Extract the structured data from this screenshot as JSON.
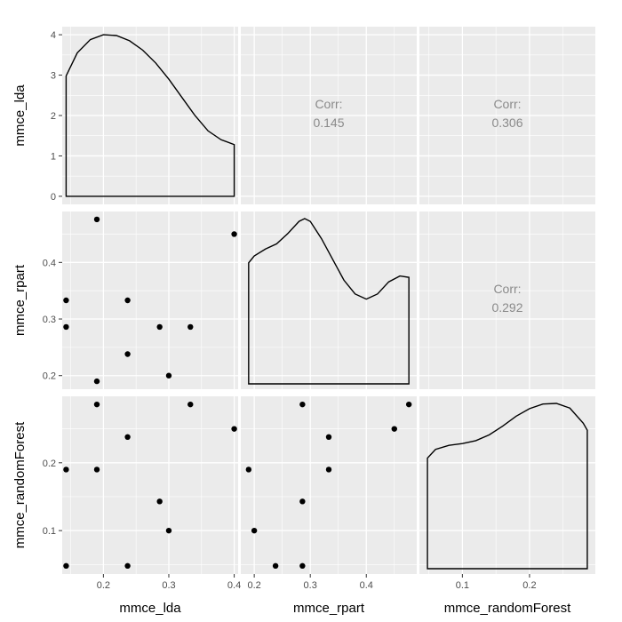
{
  "chart_data": {
    "type": "pairs",
    "variables": [
      "mmce_lda",
      "mmce_rpart",
      "mmce_randomForest"
    ],
    "points": {
      "mmce_lda": [
        0.19,
        0.4,
        0.143,
        0.237,
        0.143,
        0.286,
        0.333,
        0.237,
        0.3,
        0.19
      ],
      "mmce_rpart": [
        0.476,
        0.45,
        0.333,
        0.333,
        0.286,
        0.286,
        0.286,
        0.238,
        0.2,
        0.19
      ],
      "mmce_randomForest": [
        0.286,
        0.25,
        0.19,
        0.238,
        0.048,
        0.143,
        0.286,
        0.048,
        0.1,
        0.19
      ]
    },
    "correlations": {
      "label": "Corr:",
      "lda_rpart": "0.145",
      "lda_randomForest": "0.306",
      "rpart_randomForest": "0.292"
    },
    "density": {
      "mmce_lda": {
        "x": [
          0.143,
          0.16,
          0.18,
          0.2,
          0.22,
          0.24,
          0.26,
          0.28,
          0.3,
          0.32,
          0.34,
          0.36,
          0.38,
          0.4
        ],
        "y": [
          2.98,
          3.55,
          3.88,
          4.0,
          3.98,
          3.85,
          3.62,
          3.3,
          2.9,
          2.45,
          2.0,
          1.62,
          1.4,
          1.28
        ]
      },
      "mmce_rpart": {
        "x": [
          0.19,
          0.2,
          0.22,
          0.24,
          0.26,
          0.28,
          0.29,
          0.3,
          0.32,
          0.34,
          0.36,
          0.38,
          0.4,
          0.42,
          0.44,
          0.46,
          0.476
        ],
        "y": [
          0.35,
          0.37,
          0.39,
          0.405,
          0.435,
          0.47,
          0.478,
          0.47,
          0.42,
          0.36,
          0.3,
          0.26,
          0.245,
          0.26,
          0.295,
          0.312,
          0.308
        ]
      },
      "mmce_randomForest": {
        "x": [
          0.048,
          0.06,
          0.08,
          0.1,
          0.12,
          0.14,
          0.16,
          0.18,
          0.2,
          0.22,
          0.24,
          0.26,
          0.28,
          0.286
        ],
        "y": [
          0.19,
          0.205,
          0.212,
          0.215,
          0.22,
          0.23,
          0.245,
          0.262,
          0.275,
          0.283,
          0.284,
          0.276,
          0.25,
          0.238
        ]
      }
    },
    "axes": {
      "x": [
        {
          "label": "mmce_lda",
          "range": [
            0.137,
            0.406
          ],
          "ticks": [
            "0.2",
            "0.3",
            "0.4"
          ],
          "tick_values": [
            0.2,
            0.3,
            0.4
          ]
        },
        {
          "label": "mmce_rpart",
          "range": [
            0.176,
            0.49
          ],
          "ticks": [
            "0.2",
            "0.3",
            "0.4"
          ],
          "tick_values": [
            0.2,
            0.3,
            0.4
          ]
        },
        {
          "label": "mmce_randomForest",
          "range": [
            0.036,
            0.298
          ],
          "ticks": [
            "0.1",
            "0.2"
          ],
          "tick_values": [
            0.1,
            0.2
          ]
        }
      ],
      "y": [
        {
          "label": "mmce_lda",
          "range": [
            -0.2,
            4.2
          ],
          "ticks": [
            "0",
            "1",
            "2",
            "3",
            "4"
          ],
          "tick_values": [
            0,
            1,
            2,
            3,
            4
          ]
        },
        {
          "label": "mmce_rpart",
          "range": [
            0.176,
            0.49
          ],
          "ticks": [
            "0.2",
            "0.3",
            "0.4"
          ],
          "tick_values": [
            0.2,
            0.3,
            0.4
          ]
        },
        {
          "label": "mmce_randomForest",
          "range": [
            0.036,
            0.298
          ],
          "ticks": [
            "0.1",
            "0.2"
          ],
          "tick_values": [
            0.1,
            0.2
          ]
        }
      ]
    },
    "panel_background": "#ebebeb",
    "grid_color": "#ffffff",
    "mark_color": "#000000",
    "corr_text_color": "#8a8a8a"
  }
}
